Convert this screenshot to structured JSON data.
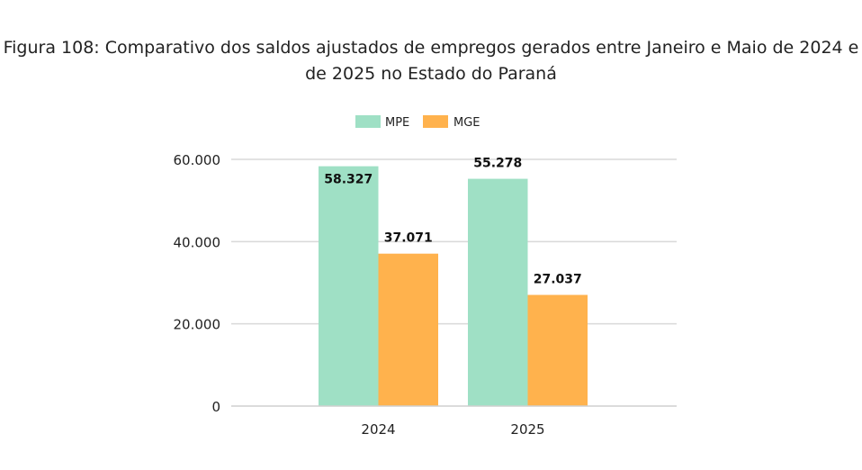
{
  "figure": {
    "title_line1": "Figura 108: Comparativo dos saldos ajustados de empregos gerados entre Janeiro e Maio de 2024 e",
    "title_line2": "de 2025 no Estado do Paraná"
  },
  "chart_data": {
    "type": "bar",
    "title": "Figura 108: Comparativo dos saldos ajustados de empregos gerados entre Janeiro e Maio de 2024 e de 2025 no Estado do Paraná",
    "categories": [
      "2024",
      "2025"
    ],
    "series": [
      {
        "name": "MPE",
        "values": [
          58327,
          55278
        ],
        "labels": [
          "58.327",
          "55.278"
        ],
        "color": "#9fe0c5"
      },
      {
        "name": "MGE",
        "values": [
          37071,
          27037
        ],
        "labels": [
          "37.071",
          "27.037"
        ],
        "color": "#ffb24d"
      }
    ],
    "ylim": [
      0,
      60000
    ],
    "yticks": [
      0,
      20000,
      40000,
      60000
    ],
    "ytick_labels": [
      "0",
      "20.000",
      "40.000",
      "60.000"
    ],
    "grid": true,
    "legend_position": "top-center",
    "xlabel": "",
    "ylabel": ""
  }
}
